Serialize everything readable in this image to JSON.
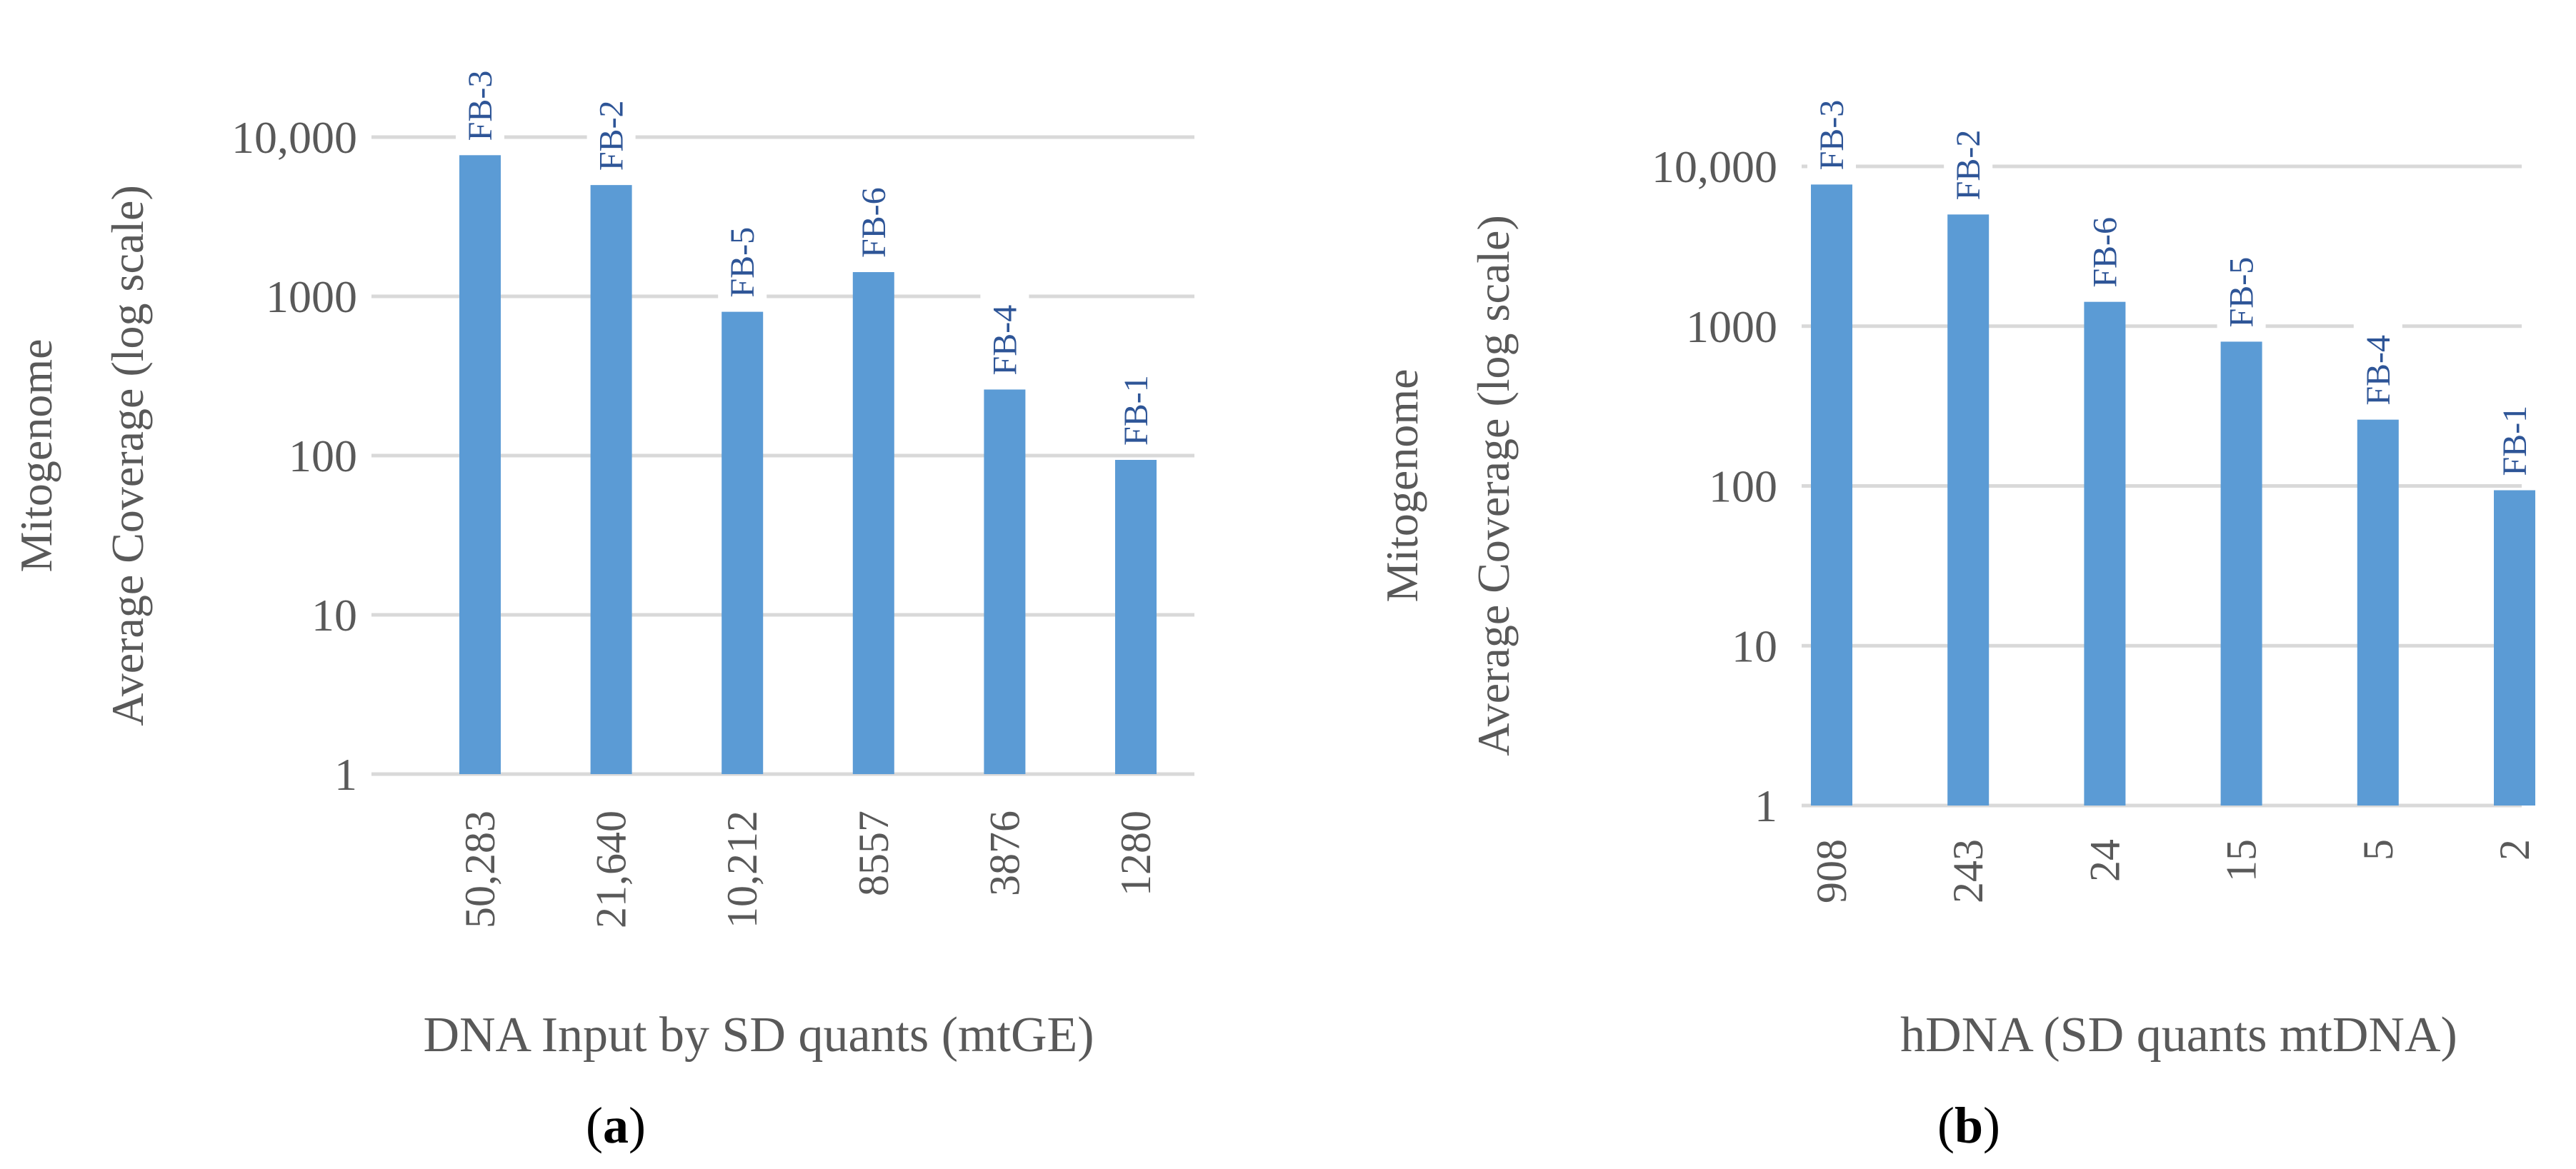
{
  "chart_data": [
    {
      "type": "bar",
      "panel": "a",
      "panel_label": "(a)",
      "title": "",
      "xlabel": "DNA Input by SD quants (mtGE)",
      "ylabel_line1": "Mitogenome",
      "ylabel_line2": "Average Coverage (log scale)",
      "yscale": "log",
      "ylim": [
        1,
        10000
      ],
      "yticks": [
        "1",
        "10",
        "100",
        "1000",
        "10,000"
      ],
      "categories": [
        "50,283",
        "21,640",
        "10,212",
        "8557",
        "3876",
        "1280"
      ],
      "bar_labels": [
        "FB-3",
        "FB-2",
        "FB-5",
        "FB-6",
        "FB-4",
        "FB-1"
      ],
      "values": [
        7700,
        5000,
        800,
        1420,
        260,
        94
      ],
      "grid": true,
      "color": "#5b9bd5"
    },
    {
      "type": "bar",
      "panel": "b",
      "panel_label": "(b)",
      "title": "",
      "xlabel": "hDNA (SD quants mtDNA)",
      "ylabel_line1": "Mitogenome",
      "ylabel_line2": "Average Coverage (log scale)",
      "yscale": "log",
      "ylim": [
        1,
        10000
      ],
      "yticks": [
        "1",
        "10",
        "100",
        "1000",
        "10,000"
      ],
      "categories": [
        "908",
        "243",
        "24",
        "15",
        "5",
        "2"
      ],
      "bar_labels": [
        "FB-3",
        "FB-2",
        "FB-6",
        "FB-5",
        "FB-4",
        "FB-1"
      ],
      "values": [
        7700,
        5000,
        1420,
        800,
        260,
        94
      ],
      "grid": true,
      "color": "#5b9bd5"
    }
  ]
}
